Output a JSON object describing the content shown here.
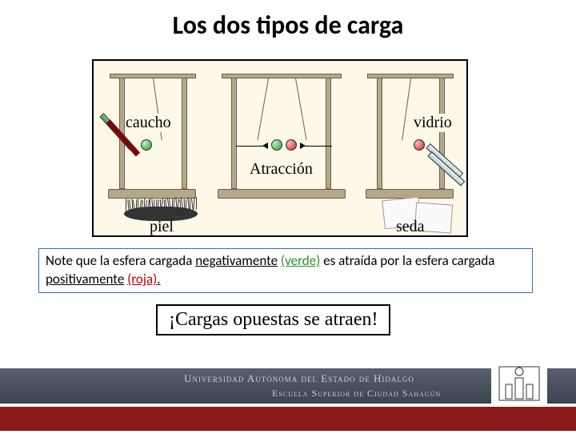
{
  "title": "Los dos tipos de carga",
  "diagram": {
    "background": "#fdf8e8",
    "labels": {
      "caucho": "caucho",
      "vidrio": "vidrio",
      "atraccion": "Atracción",
      "piel": "piel",
      "seda": "seda"
    },
    "label_fontsize": 20,
    "balls": {
      "green_color": "#2e9b2e",
      "red_color": "#c02020"
    },
    "platform_color": "#b5a888",
    "platform_border": "#6b6048"
  },
  "note": {
    "parts": [
      {
        "text": "Note que la esfera cargada ",
        "cls": ""
      },
      {
        "text": "negativamente",
        "cls": "u"
      },
      {
        "text": " ",
        "cls": ""
      },
      {
        "text": "(verde)",
        "cls": "verde u"
      },
      {
        "text": " es atraída por la esfera cargada ",
        "cls": ""
      },
      {
        "text": "positivamente",
        "cls": "u"
      },
      {
        "text": " ",
        "cls": ""
      },
      {
        "text": "(roja)",
        "cls": "roja u"
      },
      {
        "text": ".",
        "cls": "u"
      }
    ],
    "border_color": "#3a6ab8",
    "fontsize": 17,
    "verde_color": "#2e8b2e",
    "roja_color": "#c00000"
  },
  "conclusion": "¡Cargas opuestas se atraen!",
  "conclusion_fontsize": 24,
  "footer": {
    "line1": "Universidad Autónoma del Estado de Hidalgo",
    "line2": "Escuela Superior de Ciudad Sahagún",
    "blue_bg": "#3c4350",
    "red_bg": "#8b1a1a",
    "text_color": "#c9ccd2"
  }
}
